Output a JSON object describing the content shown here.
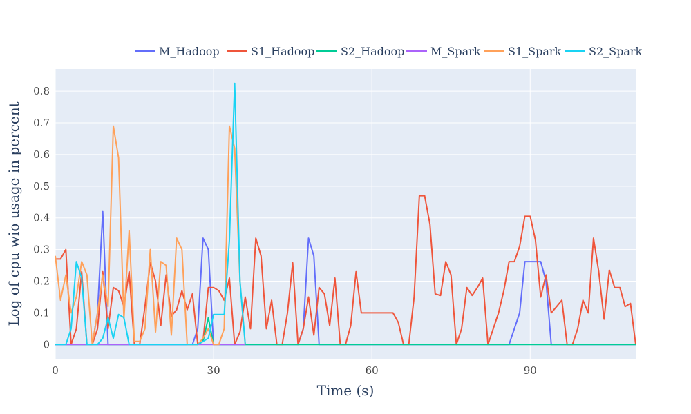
{
  "chart_data": {
    "type": "line",
    "xlabel": "Time (s)",
    "ylabel": "Log of cpu wio usage in percent",
    "xlim": [
      0,
      110
    ],
    "ylim": [
      -0.045,
      0.87
    ],
    "xticks": [
      0,
      30,
      60,
      90
    ],
    "yticks": [
      0,
      0.1,
      0.2,
      0.3,
      0.4,
      0.5,
      0.6,
      0.7,
      0.8
    ],
    "ytick_labels": [
      "0",
      "0.1",
      "0.2",
      "0.3",
      "0.4",
      "0.5",
      "0.6",
      "0.7",
      "0.8"
    ],
    "xtick_labels": [
      "0",
      "30",
      "60",
      "90"
    ],
    "grid": true,
    "legend_position": "top-right",
    "series": [
      {
        "name": "M_Hadoop",
        "color": "#636efa",
        "x": [
          0,
          6,
          7,
          8,
          9,
          10,
          26,
          27,
          28,
          29,
          30,
          46,
          47,
          48,
          49,
          50,
          86,
          88,
          89,
          92,
          93,
          94,
          110
        ],
        "y": [
          0,
          0,
          0,
          0.1,
          0.42,
          0,
          0,
          0.05,
          0.336,
          0.3,
          0,
          0,
          0.05,
          0.336,
          0.28,
          0,
          0,
          0.1,
          0.262,
          0.262,
          0.2,
          0,
          0
        ]
      },
      {
        "name": "S1_Hadoop",
        "color": "#ef553b",
        "x": [
          0,
          1,
          2,
          3,
          4,
          5,
          6,
          7,
          8,
          9,
          10,
          11,
          12,
          13,
          14,
          15,
          16,
          17,
          18,
          19,
          20,
          21,
          22,
          23,
          24,
          25,
          26,
          27,
          28,
          29,
          30,
          31,
          32,
          33,
          34,
          35,
          36,
          37,
          38,
          39,
          40,
          41,
          42,
          43,
          44,
          45,
          46,
          47,
          48,
          49,
          50,
          51,
          52,
          53,
          54,
          55,
          56,
          57,
          58,
          59,
          60,
          61,
          62,
          63,
          64,
          65,
          66,
          67,
          68,
          69,
          70,
          71,
          72,
          73,
          74,
          75,
          76,
          77,
          78,
          79,
          80,
          81,
          82,
          83,
          84,
          85,
          86,
          87,
          88,
          89,
          90,
          91,
          92,
          93,
          94,
          95,
          96,
          97,
          98,
          99,
          100,
          101,
          102,
          103,
          104,
          105,
          106,
          107,
          108,
          109,
          110
        ],
        "y": [
          0.27,
          0.27,
          0.3,
          0,
          0.05,
          0.23,
          0,
          0,
          0.05,
          0.23,
          0.05,
          0.18,
          0.17,
          0.12,
          0.23,
          0,
          0,
          0.12,
          0.26,
          0.2,
          0.06,
          0.22,
          0.09,
          0.11,
          0.17,
          0.11,
          0.16,
          0,
          0.01,
          0.18,
          0.18,
          0.17,
          0.14,
          0.21,
          0,
          0.04,
          0.15,
          0.05,
          0.336,
          0.28,
          0.05,
          0.14,
          0,
          0,
          0.1,
          0.258,
          0,
          0.05,
          0.15,
          0.03,
          0.18,
          0.16,
          0.06,
          0.21,
          0,
          0,
          0.06,
          0.23,
          0.1,
          0.1,
          0.1,
          0.1,
          0.1,
          0.1,
          0.1,
          0.07,
          0,
          0,
          0.15,
          0.47,
          0.47,
          0.38,
          0.16,
          0.155,
          0.262,
          0.22,
          0,
          0.05,
          0.18,
          0.155,
          0.18,
          0.21,
          0,
          0.05,
          0.1,
          0.17,
          0.262,
          0.262,
          0.31,
          0.405,
          0.405,
          0.33,
          0.15,
          0.22,
          0.1,
          0.12,
          0.14,
          0,
          0,
          0.05,
          0.14,
          0.1,
          0.336,
          0.23,
          0.08,
          0.235,
          0.18,
          0.18,
          0.12,
          0.13,
          0
        ]
      },
      {
        "name": "S2_Hadoop",
        "color": "#00cc96",
        "x": [
          0,
          26,
          27,
          28,
          29,
          30,
          110
        ],
        "y": [
          0,
          0,
          0,
          0.01,
          0.085,
          0,
          0
        ]
      },
      {
        "name": "M_Spark",
        "color": "#ab63fa",
        "x": [
          0,
          36
        ],
        "y": [
          0,
          0
        ]
      },
      {
        "name": "S1_Spark",
        "color": "#ffa15a",
        "x": [
          0,
          1,
          2,
          3,
          4,
          5,
          6,
          7,
          8,
          9,
          10,
          11,
          12,
          13,
          14,
          15,
          16,
          17,
          18,
          19,
          20,
          21,
          22,
          23,
          24,
          25,
          26,
          27,
          28,
          29,
          30,
          31,
          32,
          33,
          34,
          35,
          36
        ],
        "y": [
          0.28,
          0.14,
          0.22,
          0.1,
          0.15,
          0.262,
          0.22,
          0,
          0.1,
          0.22,
          0.12,
          0.69,
          0.59,
          0.08,
          0.36,
          0.01,
          0.01,
          0.05,
          0.3,
          0.04,
          0.262,
          0.25,
          0.03,
          0.336,
          0.3,
          0,
          0,
          0,
          0.02,
          0.05,
          0,
          0,
          0.05,
          0.69,
          0.62,
          0.2,
          0
        ]
      },
      {
        "name": "S2_Spark",
        "color": "#19d3f3",
        "x": [
          0,
          2,
          3,
          4,
          5,
          6,
          7,
          8,
          9,
          10,
          11,
          12,
          13,
          14,
          15,
          27,
          28,
          29,
          30,
          31,
          32,
          33,
          34,
          35,
          36
        ],
        "y": [
          0,
          0,
          0.05,
          0.262,
          0.21,
          0,
          0,
          0,
          0.02,
          0.085,
          0.02,
          0.095,
          0.085,
          0,
          0,
          0,
          0.01,
          0.02,
          0.095,
          0.095,
          0.095,
          0.33,
          0.825,
          0.2,
          0
        ]
      }
    ]
  }
}
